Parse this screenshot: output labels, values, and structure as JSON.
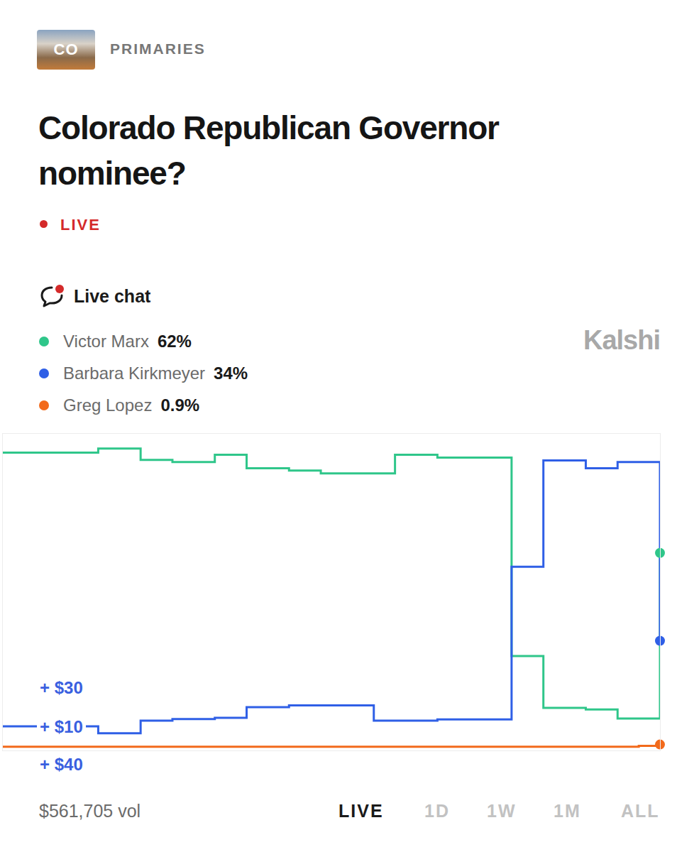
{
  "header": {
    "badge": "CO",
    "category": "PRIMARIES",
    "title": "Colorado Republican Governor nominee?",
    "status": "LIVE",
    "chat": "Live chat",
    "brand": "Kalshi"
  },
  "chart_data": {
    "type": "line",
    "line_style": "step",
    "marker": "circle",
    "legend": "top-left",
    "grid": false,
    "tick_labels": false,
    "ylim": [
      -1,
      100
    ],
    "categories": [
      null,
      null,
      null,
      null,
      null,
      null,
      null,
      null,
      null,
      null,
      null,
      null,
      null,
      null,
      null,
      null,
      null,
      null,
      null,
      null,
      null,
      null,
      null,
      null,
      null,
      null,
      null,
      null,
      null,
      null,
      null,
      null,
      null,
      null,
      null,
      null,
      null,
      null,
      null,
      null,
      null,
      null,
      null,
      null,
      null,
      null,
      null,
      null,
      null,
      null,
      null,
      null,
      null,
      null,
      null,
      null,
      null,
      null,
      null,
      null,
      null,
      null,
      null
    ],
    "series": [
      {
        "name": "Victor Marx",
        "legend_label": "62%",
        "color": "#2fc68a",
        "values": [
          94,
          94,
          94,
          94,
          94,
          94,
          94,
          94,
          94,
          95.3,
          95.3,
          95.3,
          95.3,
          91.7,
          91.7,
          91.7,
          91,
          91,
          91,
          91,
          93.3,
          93.3,
          93.3,
          89,
          89,
          89,
          89,
          88.3,
          88.3,
          88.3,
          87.4,
          87.4,
          87.4,
          87.4,
          87.4,
          87.4,
          87.4,
          93.3,
          93.3,
          93.3,
          93.3,
          92.4,
          92.4,
          92.4,
          92.4,
          92.4,
          92.4,
          92.4,
          29.1,
          29.1,
          29.1,
          12.6,
          12.6,
          12.6,
          12.6,
          12.1,
          12.1,
          12.1,
          9.2,
          9.2,
          9.2,
          9.2,
          62
        ]
      },
      {
        "name": "Barbara Kirkmeyer",
        "legend_label": "34%",
        "color": "#2f5fe6",
        "values": [
          6.7,
          6.7,
          6.7,
          6.7,
          6.7,
          6.7,
          6.7,
          6.7,
          6.7,
          4.5,
          4.5,
          4.5,
          4.5,
          8.5,
          8.5,
          8.5,
          9,
          9,
          9,
          9,
          9.4,
          9.4,
          9.4,
          12.8,
          12.8,
          12.8,
          12.8,
          13.4,
          13.4,
          13.4,
          13.4,
          13.4,
          13.4,
          13.4,
          13.4,
          8.5,
          8.5,
          8.5,
          8.5,
          8.5,
          8.5,
          8.9,
          8.9,
          8.9,
          8.9,
          8.9,
          8.9,
          8.9,
          57.6,
          57.6,
          57.6,
          91.5,
          91.5,
          91.5,
          91.5,
          89,
          89,
          89,
          91,
          91,
          91,
          91,
          34
        ]
      },
      {
        "name": "Greg Lopez",
        "legend_label": "0.9%",
        "color": "#f26a1b",
        "values": [
          0.2,
          0.2,
          0.2,
          0.2,
          0.2,
          0.2,
          0.2,
          0.2,
          0.2,
          0.2,
          0.2,
          0.2,
          0.2,
          0.2,
          0.2,
          0.2,
          0.2,
          0.2,
          0.2,
          0.2,
          0.2,
          0.2,
          0.2,
          0.2,
          0.2,
          0.2,
          0.2,
          0.2,
          0.2,
          0.2,
          0.2,
          0.2,
          0.2,
          0.2,
          0.2,
          0.2,
          0.2,
          0.2,
          0.2,
          0.2,
          0.2,
          0.2,
          0.2,
          0.2,
          0.2,
          0.2,
          0.2,
          0.2,
          0.2,
          0.2,
          0.2,
          0.2,
          0.2,
          0.2,
          0.2,
          0.2,
          0.2,
          0.2,
          0.2,
          0.2,
          0.5,
          0.5,
          0.9
        ]
      }
    ],
    "trade_labels": [
      "+ $30",
      "+ $10",
      "+ $40"
    ]
  },
  "footer": {
    "volume": "$561,705 vol",
    "tabs": [
      "LIVE",
      "1D",
      "1W",
      "1M",
      "ALL"
    ],
    "active_tab": "LIVE"
  }
}
